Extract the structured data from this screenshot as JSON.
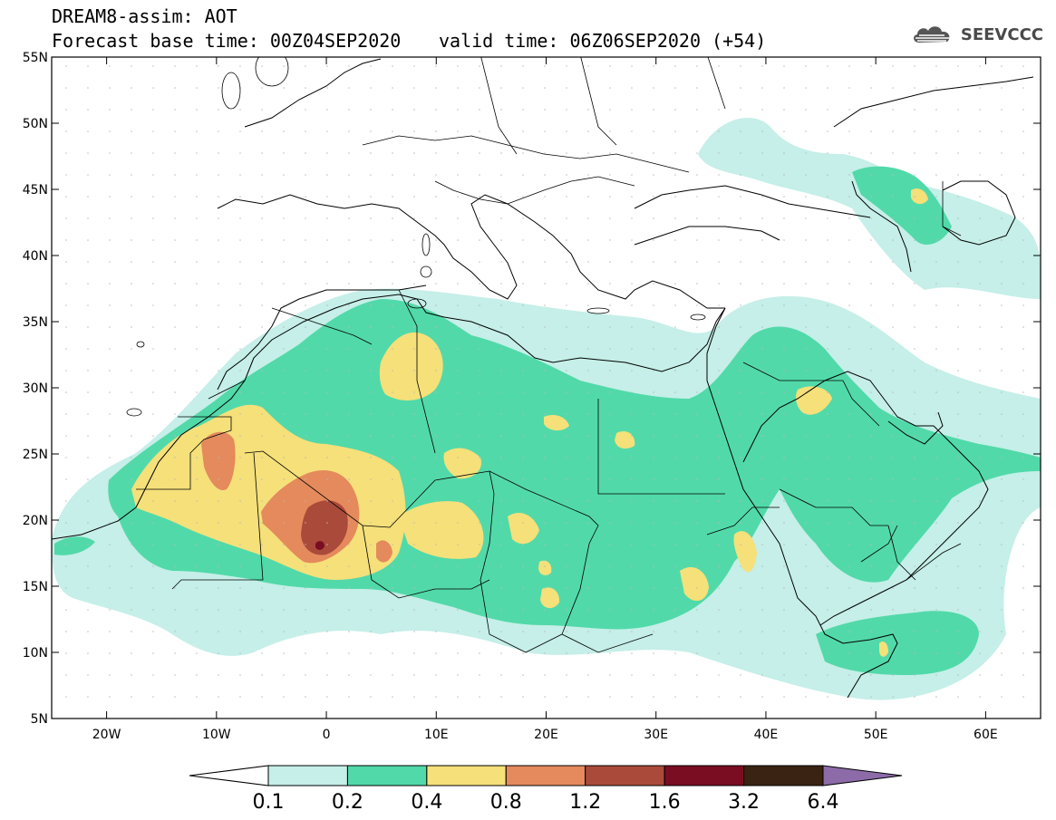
{
  "header": {
    "title": "DREAM8-assim: AOT",
    "base_time": "Forecast base time: 00Z04SEP2020",
    "valid_time": "valid time: 06Z06SEP2020 (+54)",
    "brand": "SEEVCCC",
    "brand_icon": "cloud-logo-icon"
  },
  "map": {
    "lat_ticks": [
      "55N",
      "50N",
      "45N",
      "40N",
      "35N",
      "30N",
      "25N",
      "20N",
      "15N",
      "10N",
      "5N"
    ],
    "lon_ticks": [
      "20W",
      "10W",
      "0",
      "10E",
      "20E",
      "30E",
      "40E",
      "50E",
      "60E"
    ],
    "background": "#ffffff",
    "coastline_color": "#000000"
  },
  "colorbar": {
    "labels": [
      "0.1",
      "0.2",
      "0.4",
      "0.8",
      "1.2",
      "1.6",
      "3.2",
      "6.4"
    ],
    "colors": [
      "#ffffff",
      "#c5efe8",
      "#52d9a9",
      "#f5e07a",
      "#e48a5c",
      "#aa4a3a",
      "#7a0d22",
      "#3a2312",
      "#8c6ba8"
    ]
  }
}
